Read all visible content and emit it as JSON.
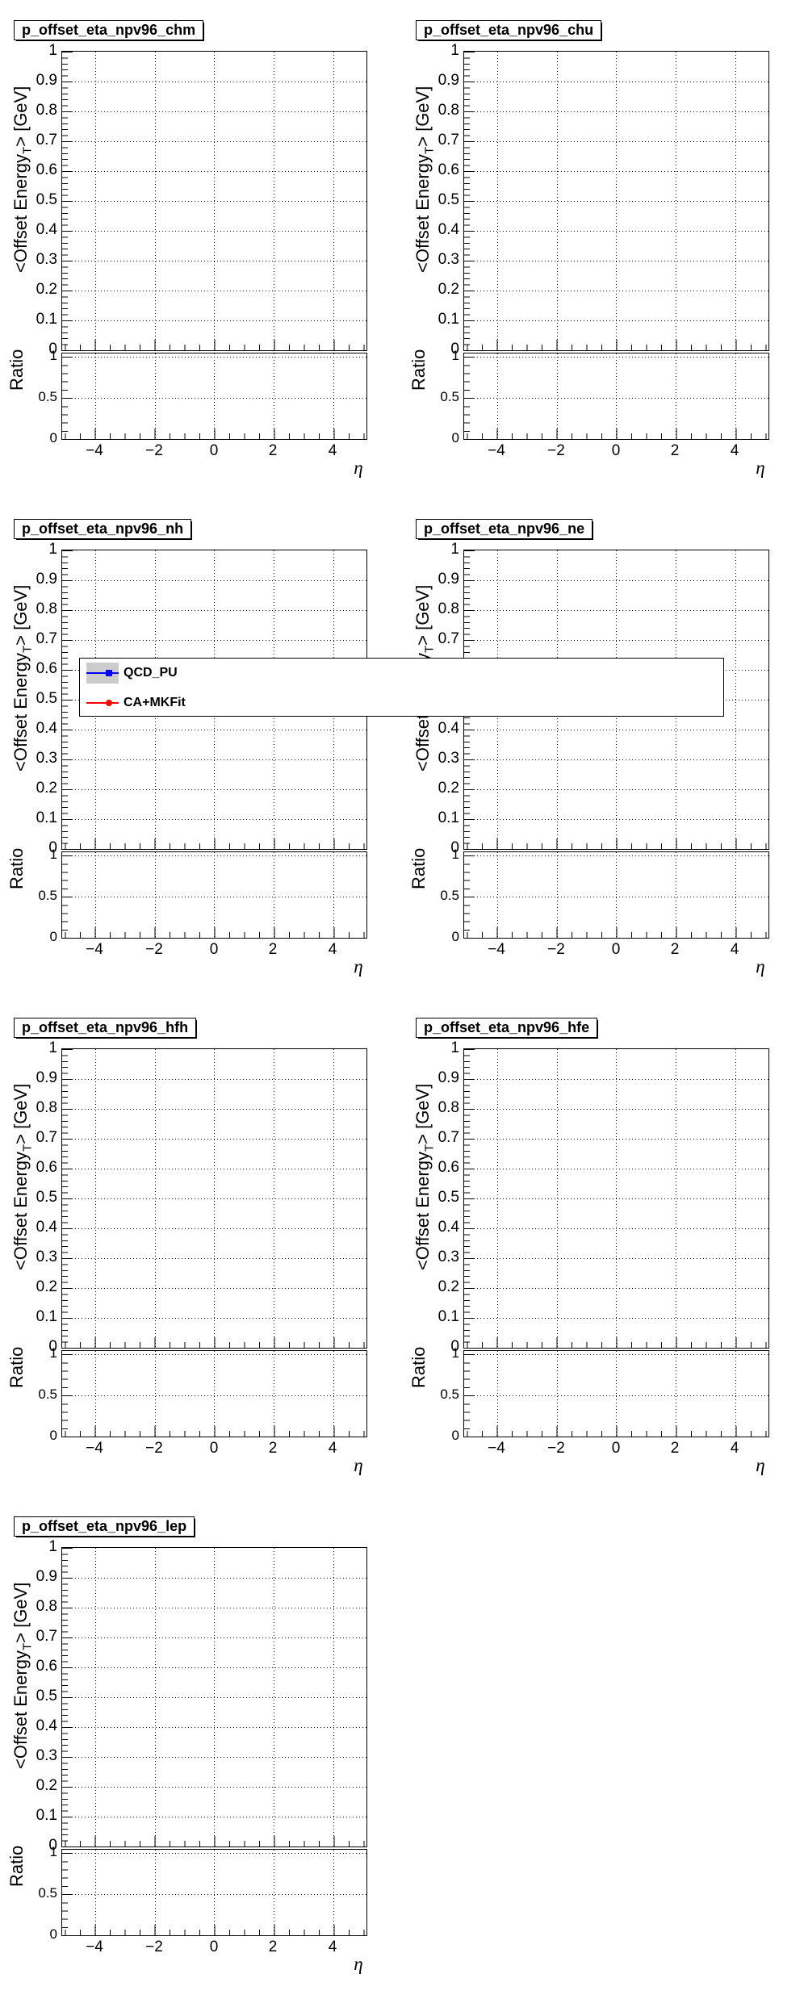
{
  "canvas": {
    "background": "#ffffff"
  },
  "plots": [
    {
      "key": "chm",
      "title": "p_offset_eta_npv96_chm",
      "row": 0,
      "col": 0
    },
    {
      "key": "chu",
      "title": "p_offset_eta_npv96_chu",
      "row": 0,
      "col": 1
    },
    {
      "key": "nh",
      "title": "p_offset_eta_npv96_nh",
      "row": 1,
      "col": 0
    },
    {
      "key": "ne",
      "title": "p_offset_eta_npv96_ne",
      "row": 1,
      "col": 1
    },
    {
      "key": "hfh",
      "title": "p_offset_eta_npv96_hfh",
      "row": 2,
      "col": 0
    },
    {
      "key": "hfe",
      "title": "p_offset_eta_npv96_hfe",
      "row": 2,
      "col": 1
    },
    {
      "key": "lep",
      "title": "p_offset_eta_npv96_lep",
      "row": 3,
      "col": 0
    }
  ],
  "axes": {
    "main_y_title_pre": "<Offset Energy",
    "main_y_title_sub": "T",
    "main_y_title_post": "> [GeV]",
    "main_y_ticks": [
      "1",
      "0.9",
      "0.8",
      "0.7",
      "0.6",
      "0.5",
      "0.4",
      "0.3",
      "0.2",
      "0.1",
      "0"
    ],
    "ratio_y_title": "Ratio",
    "ratio_y_ticks": [
      "1",
      "0.5",
      "0"
    ],
    "x_ticks": [
      "−4",
      "−2",
      "0",
      "2",
      "4"
    ],
    "x_title": "η"
  },
  "legend": {
    "entries": [
      {
        "label": "QCD_PU",
        "color": "#0000ff",
        "marker": "square",
        "band_color": "#cccccc"
      },
      {
        "label": "CA+MKFit",
        "color": "#ff0000",
        "marker": "circle"
      }
    ]
  },
  "chart_data": [
    {
      "type": "scatter",
      "title": "p_offset_eta_npv96_chm",
      "xlabel": "η",
      "ylabel": "<Offset Energy_T> [GeV]",
      "xlim": [
        -5.2,
        5.2
      ],
      "ylim": [
        0,
        1
      ],
      "x_ticks": [
        -4,
        -2,
        0,
        2,
        4
      ],
      "y_ticks": [
        0,
        0.1,
        0.2,
        0.3,
        0.4,
        0.5,
        0.6,
        0.7,
        0.8,
        0.9,
        1
      ],
      "grid": true,
      "series": [
        {
          "name": "QCD_PU",
          "color": "#0000ff",
          "marker": "square",
          "points": []
        },
        {
          "name": "CA+MKFit",
          "color": "#ff0000",
          "marker": "circle",
          "points": []
        }
      ],
      "ratio_panel": {
        "ylabel": "Ratio",
        "ylim": [
          0,
          1.05
        ],
        "y_ticks": [
          0,
          0.5,
          1
        ],
        "points": []
      },
      "note": "empty frame - no data points visible"
    },
    {
      "type": "scatter",
      "title": "p_offset_eta_npv96_chu",
      "xlabel": "η",
      "ylabel": "<Offset Energy_T> [GeV]",
      "xlim": [
        -5.2,
        5.2
      ],
      "ylim": [
        0,
        1
      ],
      "x_ticks": [
        -4,
        -2,
        0,
        2,
        4
      ],
      "y_ticks": [
        0,
        0.1,
        0.2,
        0.3,
        0.4,
        0.5,
        0.6,
        0.7,
        0.8,
        0.9,
        1
      ],
      "grid": true,
      "series": [
        {
          "name": "QCD_PU",
          "color": "#0000ff",
          "marker": "square",
          "points": []
        },
        {
          "name": "CA+MKFit",
          "color": "#ff0000",
          "marker": "circle",
          "points": []
        }
      ],
      "ratio_panel": {
        "ylabel": "Ratio",
        "ylim": [
          0,
          1.05
        ],
        "y_ticks": [
          0,
          0.5,
          1
        ],
        "points": []
      },
      "note": "empty frame - no data points visible"
    },
    {
      "type": "scatter",
      "title": "p_offset_eta_npv96_nh",
      "xlabel": "η",
      "ylabel": "<Offset Energy_T> [GeV]",
      "xlim": [
        -5.2,
        5.2
      ],
      "ylim": [
        0,
        1
      ],
      "x_ticks": [
        -4,
        -2,
        0,
        2,
        4
      ],
      "y_ticks": [
        0,
        0.1,
        0.2,
        0.3,
        0.4,
        0.5,
        0.6,
        0.7,
        0.8,
        0.9,
        1
      ],
      "grid": true,
      "legend_position": "overlay box spanning across both columns",
      "series": [
        {
          "name": "QCD_PU",
          "color": "#0000ff",
          "marker": "square",
          "points": []
        },
        {
          "name": "CA+MKFit",
          "color": "#ff0000",
          "marker": "circle",
          "points": []
        }
      ],
      "ratio_panel": {
        "ylabel": "Ratio",
        "ylim": [
          0,
          1.05
        ],
        "y_ticks": [
          0,
          0.5,
          1
        ],
        "points": []
      },
      "note": "empty frame - no data points visible"
    },
    {
      "type": "scatter",
      "title": "p_offset_eta_npv96_ne",
      "xlabel": "η",
      "ylabel": "<Offset Energy_T> [GeV]",
      "xlim": [
        -5.2,
        5.2
      ],
      "ylim": [
        0,
        1
      ],
      "x_ticks": [
        -4,
        -2,
        0,
        2,
        4
      ],
      "y_ticks": [
        0,
        0.1,
        0.2,
        0.3,
        0.4,
        0.5,
        0.6,
        0.7,
        0.8,
        0.9,
        1
      ],
      "grid": true,
      "series": [
        {
          "name": "QCD_PU",
          "color": "#0000ff",
          "marker": "square",
          "points": []
        },
        {
          "name": "CA+MKFit",
          "color": "#ff0000",
          "marker": "circle",
          "points": []
        }
      ],
      "ratio_panel": {
        "ylabel": "Ratio",
        "ylim": [
          0,
          1.05
        ],
        "y_ticks": [
          0,
          0.5,
          1
        ],
        "points": []
      },
      "note": "empty frame - no data points visible"
    },
    {
      "type": "scatter",
      "title": "p_offset_eta_npv96_hfh",
      "xlabel": "η",
      "ylabel": "<Offset Energy_T> [GeV]",
      "xlim": [
        -5.2,
        5.2
      ],
      "ylim": [
        0,
        1
      ],
      "x_ticks": [
        -4,
        -2,
        0,
        2,
        4
      ],
      "y_ticks": [
        0,
        0.1,
        0.2,
        0.3,
        0.4,
        0.5,
        0.6,
        0.7,
        0.8,
        0.9,
        1
      ],
      "grid": true,
      "series": [
        {
          "name": "QCD_PU",
          "color": "#0000ff",
          "marker": "square",
          "points": []
        },
        {
          "name": "CA+MKFit",
          "color": "#ff0000",
          "marker": "circle",
          "points": []
        }
      ],
      "ratio_panel": {
        "ylabel": "Ratio",
        "ylim": [
          0,
          1.05
        ],
        "y_ticks": [
          0,
          0.5,
          1
        ],
        "points": []
      },
      "note": "empty frame - no data points visible"
    },
    {
      "type": "scatter",
      "title": "p_offset_eta_npv96_hfe",
      "xlabel": "η",
      "ylabel": "<Offset Energy_T> [GeV]",
      "xlim": [
        -5.2,
        5.2
      ],
      "ylim": [
        0,
        1
      ],
      "x_ticks": [
        -4,
        -2,
        0,
        2,
        4
      ],
      "y_ticks": [
        0,
        0.1,
        0.2,
        0.3,
        0.4,
        0.5,
        0.6,
        0.7,
        0.8,
        0.9,
        1
      ],
      "grid": true,
      "series": [
        {
          "name": "QCD_PU",
          "color": "#0000ff",
          "marker": "square",
          "points": []
        },
        {
          "name": "CA+MKFit",
          "color": "#ff0000",
          "marker": "circle",
          "points": []
        }
      ],
      "ratio_panel": {
        "ylabel": "Ratio",
        "ylim": [
          0,
          1.05
        ],
        "y_ticks": [
          0,
          0.5,
          1
        ],
        "points": []
      },
      "note": "empty frame - no data points visible"
    },
    {
      "type": "scatter",
      "title": "p_offset_eta_npv96_lep",
      "xlabel": "η",
      "ylabel": "<Offset Energy_T> [GeV]",
      "xlim": [
        -5.2,
        5.2
      ],
      "ylim": [
        0,
        1
      ],
      "x_ticks": [
        -4,
        -2,
        0,
        2,
        4
      ],
      "y_ticks": [
        0,
        0.1,
        0.2,
        0.3,
        0.4,
        0.5,
        0.6,
        0.7,
        0.8,
        0.9,
        1
      ],
      "grid": true,
      "series": [
        {
          "name": "QCD_PU",
          "color": "#0000ff",
          "marker": "square",
          "points": []
        },
        {
          "name": "CA+MKFit",
          "color": "#ff0000",
          "marker": "circle",
          "points": []
        }
      ],
      "ratio_panel": {
        "ylabel": "Ratio",
        "ylim": [
          0,
          1.05
        ],
        "y_ticks": [
          0,
          0.5,
          1
        ],
        "points": []
      },
      "note": "empty frame - no data points visible"
    }
  ]
}
